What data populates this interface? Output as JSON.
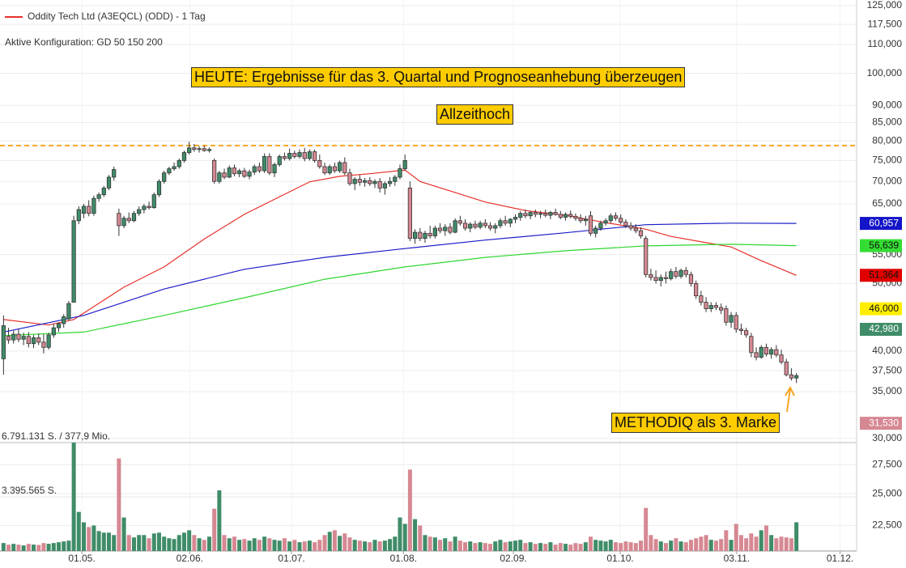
{
  "chart_data": {
    "type": "candlestick",
    "title": "Oddity Tech Ltd (A3EQCL) (ODD) - 1 Tag",
    "subtitle": "Aktive Konfiguration: GD 50 150 200",
    "log_scale": true,
    "grid": true,
    "ylim": [
      20690,
      127350
    ],
    "yticks": [
      {
        "value": 125000,
        "label": "125,000"
      },
      {
        "value": 117500,
        "label": "117,500"
      },
      {
        "value": 110000,
        "label": "110,000"
      },
      {
        "value": 100000,
        "label": "100,000"
      },
      {
        "value": 90000,
        "label": "90,000"
      },
      {
        "value": 85000,
        "label": "85,000"
      },
      {
        "value": 80000,
        "label": "80,000"
      },
      {
        "value": 75000,
        "label": "75,000"
      },
      {
        "value": 70000,
        "label": "70,000"
      },
      {
        "value": 65000,
        "label": "65,000"
      },
      {
        "value": 55000,
        "label": "55,000"
      },
      {
        "value": 50000,
        "label": "50,000"
      },
      {
        "value": 40000,
        "label": "40,000"
      },
      {
        "value": 37500,
        "label": "37,500"
      },
      {
        "value": 35000,
        "label": "35,000"
      },
      {
        "value": 30000,
        "label": "30,000"
      },
      {
        "value": 27500,
        "label": "27,500"
      },
      {
        "value": 25000,
        "label": "25,000"
      },
      {
        "value": 22500,
        "label": "22,500"
      }
    ],
    "xlim": [
      -0.7,
      170
    ],
    "xticks": [
      {
        "value": 15.6,
        "label": "01.05."
      },
      {
        "value": 37.1,
        "label": "02.06."
      },
      {
        "value": 57.4,
        "label": "01.07."
      },
      {
        "value": 79.7,
        "label": "01.08."
      },
      {
        "value": 101.6,
        "label": "02.09."
      },
      {
        "value": 122.9,
        "label": "01.10."
      },
      {
        "value": 146.1,
        "label": "03.11."
      },
      {
        "value": 166.7,
        "label": "01.12."
      }
    ],
    "up_color": "#3f8c68",
    "down_color": "#d68892",
    "candles": [
      [
        39000,
        45000,
        37000,
        43500
      ],
      [
        42000,
        43200,
        41000,
        41500
      ],
      [
        41500,
        42800,
        41000,
        42300
      ],
      [
        42300,
        43000,
        41200,
        41600
      ],
      [
        41600,
        42500,
        40800,
        42000
      ],
      [
        42000,
        42600,
        40500,
        41000
      ],
      [
        41000,
        42200,
        40400,
        41800
      ],
      [
        41800,
        42400,
        40800,
        41200
      ],
      [
        41200,
        42300,
        39700,
        40500
      ],
      [
        40500,
        42500,
        40200,
        42200
      ],
      [
        42200,
        43800,
        41800,
        43200
      ],
      [
        43200,
        44000,
        42600,
        43800
      ],
      [
        43800,
        45200,
        43200,
        44800
      ],
      [
        44500,
        47200,
        44200,
        46800
      ],
      [
        47000,
        62500,
        48000,
        61500
      ],
      [
        61500,
        64500,
        60800,
        63800
      ],
      [
        63000,
        65000,
        62000,
        64500
      ],
      [
        64500,
        65800,
        62400,
        63000
      ],
      [
        63000,
        66800,
        62500,
        66200
      ],
      [
        66200,
        67500,
        65500,
        67000
      ],
      [
        67000,
        69000,
        66500,
        68500
      ],
      [
        68500,
        71500,
        68000,
        71000
      ],
      [
        71000,
        73500,
        70200,
        72800
      ],
      [
        63000,
        64000,
        58500,
        60500
      ],
      [
        60500,
        62500,
        60000,
        62000
      ],
      [
        62000,
        63200,
        61000,
        61500
      ],
      [
        61500,
        63500,
        61200,
        63000
      ],
      [
        63000,
        64500,
        62500,
        63800
      ],
      [
        63800,
        65000,
        63000,
        64500
      ],
      [
        64500,
        65500,
        63800,
        64200
      ],
      [
        64200,
        67500,
        64000,
        67000
      ],
      [
        67000,
        70500,
        66500,
        70000
      ],
      [
        70000,
        72500,
        69500,
        72000
      ],
      [
        72000,
        73500,
        71500,
        73000
      ],
      [
        73000,
        74500,
        72500,
        73500
      ],
      [
        73500,
        75500,
        73000,
        75000
      ],
      [
        75000,
        77500,
        74500,
        77000
      ],
      [
        77000,
        79800,
        76500,
        78200
      ],
      [
        78200,
        79200,
        77200,
        77800
      ],
      [
        77800,
        78600,
        77000,
        78000
      ],
      [
        78000,
        78800,
        77200,
        77500
      ],
      [
        77500,
        78300,
        77000,
        77800
      ],
      [
        75000,
        75500,
        69500,
        70000
      ],
      [
        70000,
        72500,
        69500,
        72000
      ],
      [
        72000,
        73000,
        70500,
        71000
      ],
      [
        71000,
        73800,
        70800,
        73200
      ],
      [
        73200,
        74000,
        71200,
        71800
      ],
      [
        71800,
        73000,
        71000,
        72500
      ],
      [
        72500,
        73200,
        70800,
        71200
      ],
      [
        71200,
        72800,
        70500,
        72200
      ],
      [
        72200,
        74000,
        71500,
        73500
      ],
      [
        73500,
        74500,
        72000,
        72500
      ],
      [
        72500,
        76800,
        72000,
        76000
      ],
      [
        76000,
        76800,
        71500,
        72000
      ],
      [
        72000,
        74500,
        71000,
        74000
      ],
      [
        74000,
        76500,
        73500,
        76000
      ],
      [
        76000,
        77000,
        75000,
        75500
      ],
      [
        75500,
        78000,
        75000,
        76800
      ],
      [
        76800,
        77500,
        75500,
        76000
      ],
      [
        76000,
        77800,
        75500,
        77000
      ],
      [
        77000,
        78200,
        74800,
        75500
      ],
      [
        75500,
        77800,
        75000,
        77200
      ],
      [
        77200,
        77800,
        74500,
        75000
      ],
      [
        75000,
        76500,
        73000,
        73500
      ],
      [
        73500,
        74500,
        71500,
        72000
      ],
      [
        72000,
        74000,
        71500,
        73500
      ],
      [
        73500,
        74500,
        72000,
        72500
      ],
      [
        72500,
        75000,
        72000,
        74500
      ],
      [
        74500,
        75800,
        71500,
        72000
      ],
      [
        72000,
        73000,
        69000,
        69500
      ],
      [
        69500,
        71000,
        68000,
        70500
      ],
      [
        70500,
        71500,
        69000,
        69800
      ],
      [
        69800,
        70800,
        68800,
        70200
      ],
      [
        70200,
        71000,
        69000,
        69500
      ],
      [
        69500,
        70500,
        68500,
        70000
      ],
      [
        70000,
        70800,
        67500,
        68500
      ],
      [
        68500,
        70000,
        67000,
        69500
      ],
      [
        69500,
        71000,
        68800,
        70000
      ],
      [
        70000,
        71500,
        69000,
        71000
      ],
      [
        71000,
        74000,
        70500,
        73000
      ],
      [
        73000,
        76500,
        72500,
        75000
      ],
      [
        68500,
        70000,
        57500,
        58000
      ],
      [
        58000,
        59800,
        57000,
        59200
      ],
      [
        59200,
        60000,
        57500,
        58000
      ],
      [
        58000,
        59500,
        57200,
        59000
      ],
      [
        59000,
        60500,
        58000,
        58500
      ],
      [
        58500,
        60500,
        58000,
        60000
      ],
      [
        60000,
        61000,
        59000,
        59500
      ],
      [
        59500,
        60800,
        58500,
        60200
      ],
      [
        60200,
        61000,
        58800,
        59200
      ],
      [
        59200,
        62000,
        59000,
        61500
      ],
      [
        61500,
        62500,
        60500,
        61000
      ],
      [
        61000,
        61800,
        59500,
        60000
      ],
      [
        60000,
        61200,
        59200,
        60800
      ],
      [
        60800,
        61500,
        59800,
        60200
      ],
      [
        60200,
        61500,
        59800,
        61000
      ],
      [
        61000,
        61800,
        60000,
        60500
      ],
      [
        60500,
        61200,
        59500,
        60000
      ],
      [
        60000,
        61000,
        59000,
        60500
      ],
      [
        60500,
        62000,
        60000,
        61500
      ],
      [
        61500,
        62500,
        60500,
        61000
      ],
      [
        61000,
        62000,
        60200,
        61800
      ],
      [
        61800,
        62800,
        61000,
        62200
      ],
      [
        62200,
        63500,
        61500,
        63000
      ],
      [
        63000,
        63800,
        62000,
        62500
      ],
      [
        62500,
        63500,
        61800,
        63200
      ],
      [
        63200,
        63800,
        62200,
        62800
      ],
      [
        62800,
        63500,
        62000,
        63000
      ],
      [
        63000,
        63800,
        62200,
        62600
      ],
      [
        62600,
        63500,
        61800,
        63200
      ],
      [
        63200,
        64000,
        62500,
        62800
      ],
      [
        62800,
        63500,
        61800,
        62200
      ],
      [
        62200,
        63200,
        61500,
        62800
      ],
      [
        62800,
        63600,
        62000,
        62400
      ],
      [
        62400,
        63000,
        61500,
        62000
      ],
      [
        62000,
        62800,
        61000,
        61500
      ],
      [
        61500,
        62500,
        60500,
        61800
      ],
      [
        62500,
        63500,
        58500,
        59000
      ],
      [
        59000,
        60500,
        58200,
        60000
      ],
      [
        60000,
        61500,
        59500,
        61000
      ],
      [
        61000,
        62000,
        60500,
        61500
      ],
      [
        61500,
        63000,
        61000,
        62500
      ],
      [
        62500,
        63200,
        61500,
        62000
      ],
      [
        62000,
        62800,
        60800,
        61200
      ],
      [
        61200,
        61800,
        60000,
        60500
      ],
      [
        60500,
        61200,
        59500,
        60000
      ],
      [
        60000,
        60800,
        59000,
        59500
      ],
      [
        59500,
        60200,
        58000,
        58500
      ],
      [
        58000,
        58500,
        51000,
        51500
      ],
      [
        51500,
        52500,
        50500,
        51000
      ],
      [
        51000,
        52200,
        50000,
        50500
      ],
      [
        50500,
        51500,
        49500,
        51000
      ],
      [
        51000,
        52000,
        50000,
        50800
      ],
      [
        50800,
        52500,
        50500,
        52000
      ],
      [
        52000,
        52800,
        50800,
        51200
      ],
      [
        51200,
        52500,
        50800,
        52200
      ],
      [
        52200,
        52800,
        51000,
        51500
      ],
      [
        51500,
        52000,
        49500,
        50000
      ],
      [
        50000,
        50500,
        47500,
        48000
      ],
      [
        48000,
        48800,
        46500,
        47000
      ],
      [
        47000,
        47800,
        45500,
        46000
      ],
      [
        46000,
        47000,
        45500,
        46500
      ],
      [
        46500,
        47000,
        45800,
        46200
      ],
      [
        46200,
        46800,
        45200,
        45800
      ],
      [
        46000,
        46500,
        43500,
        44000
      ],
      [
        44000,
        45500,
        43200,
        45000
      ],
      [
        45000,
        45500,
        42500,
        43000
      ],
      [
        43000,
        43800,
        42200,
        42800
      ],
      [
        42800,
        43200,
        41800,
        42200
      ],
      [
        42000,
        42500,
        39200,
        39800
      ],
      [
        39800,
        40500,
        38800,
        39200
      ],
      [
        39200,
        40800,
        39000,
        40500
      ],
      [
        40500,
        41000,
        39300,
        39600
      ],
      [
        39600,
        40500,
        39000,
        40200
      ],
      [
        40200,
        40800,
        39200,
        39500
      ],
      [
        39500,
        40200,
        38300,
        38600
      ],
      [
        38600,
        39000,
        36800,
        37000
      ],
      [
        37000,
        37800,
        36300,
        36600
      ],
      [
        36600,
        37200,
        36000,
        36900
      ]
    ],
    "series": [
      {
        "color": "#e8302a",
        "x": [
          0,
          9,
          14,
          24,
          32,
          40,
          48,
          56,
          61,
          67,
          73,
          80,
          83,
          90,
          96,
          104,
          112,
          120,
          128,
          133,
          140,
          145,
          151,
          158
        ],
        "values": [
          44400,
          43600,
          44400,
          49400,
          52800,
          57900,
          62800,
          67100,
          69900,
          71200,
          71800,
          72700,
          70000,
          67500,
          65400,
          63600,
          62600,
          61100,
          59800,
          58400,
          57200,
          56400,
          53900,
          51364
        ]
      },
      {
        "color": "#1c1cc8",
        "x": [
          0,
          16,
          32,
          48,
          64,
          80,
          96,
          112,
          128,
          145,
          158
        ],
        "values": [
          42600,
          45000,
          49100,
          52400,
          54500,
          56100,
          57700,
          59100,
          60700,
          61000,
          60957
        ]
      },
      {
        "color": "#2fd62f",
        "x": [
          0,
          16,
          32,
          48,
          64,
          80,
          96,
          112,
          128,
          145,
          158
        ],
        "values": [
          42100,
          42600,
          45000,
          47700,
          50700,
          52800,
          54500,
          55700,
          56600,
          56900,
          56639
        ]
      }
    ],
    "reference_line": {
      "value": 78800,
      "color": "#f5a623"
    },
    "price_tags": {
      "values": [
        60957,
        56639,
        51364,
        46000,
        42980,
        31530
      ],
      "value_labels": [
        "60,957",
        "56,639",
        "51,364",
        "46,000",
        "42,980",
        "31,530"
      ],
      "colors": [
        "#1414c8",
        "#33dd33",
        "#e00000",
        "#ffee00",
        "#3f8c68",
        "#d68892"
      ],
      "text_colors": [
        "#ffffff",
        "#111111",
        "#111111",
        "#111111",
        "#ffffff",
        "#ffffff"
      ]
    },
    "volume": {
      "ylim": [
        0,
        6791131
      ],
      "yticks": [
        {
          "value": 3395565,
          "label": "3.395.565 S."
        },
        {
          "value": 6791131,
          "label": "6.791.131 S. / 377,9 Mio."
        }
      ],
      "values": [
        500000,
        400000,
        450000,
        400000,
        350000,
        450000,
        400000,
        380000,
        500000,
        450000,
        500000,
        550000,
        600000,
        650000,
        6791131,
        2450000,
        1800000,
        1500000,
        1600000,
        1250000,
        1150000,
        1150000,
        1000000,
        5800000,
        2100000,
        1000000,
        850000,
        1000000,
        1000000,
        800000,
        1100000,
        1150000,
        900000,
        800000,
        750000,
        1000000,
        1150000,
        1300000,
        1000000,
        800000,
        700000,
        900000,
        2650000,
        3800000,
        1000000,
        800000,
        900000,
        700000,
        750000,
        650000,
        800000,
        700000,
        900000,
        800000,
        700000,
        650000,
        800000,
        600000,
        700000,
        550000,
        600000,
        650000,
        550000,
        700000,
        1000000,
        1200000,
        1300000,
        950000,
        1100000,
        850000,
        700000,
        650000,
        600000,
        550000,
        700000,
        600000,
        650000,
        750000,
        900000,
        2100000,
        1700000,
        5100000,
        2000000,
        1600000,
        1000000,
        900000,
        850000,
        700000,
        800000,
        600000,
        900000,
        650000,
        550000,
        600000,
        500000,
        550000,
        500000,
        450000,
        600000,
        700000,
        550000,
        600000,
        650000,
        700000,
        500000,
        550000,
        450000,
        500000,
        450000,
        550000,
        400000,
        500000,
        450000,
        400000,
        500000,
        450000,
        550000,
        900000,
        700000,
        650000,
        600000,
        700000,
        550000,
        500000,
        600000,
        550000,
        500000,
        650000,
        2700000,
        1000000,
        750000,
        600000,
        500000,
        650000,
        800000,
        600000,
        550000,
        700000,
        800000,
        900000,
        1000000,
        700000,
        650000,
        750000,
        1300000,
        700000,
        1700000,
        1000000,
        800000,
        1100000,
        900000,
        1300000,
        1600000,
        1000000,
        800000,
        900000,
        850000,
        800000,
        1800000
      ]
    },
    "annotations": [
      "HEUTE: Ergebnisse für das 3. Quartal und Prognoseanhebung überzeugen",
      "Allzeithoch",
      "METHODIQ als 3. Marke"
    ]
  }
}
